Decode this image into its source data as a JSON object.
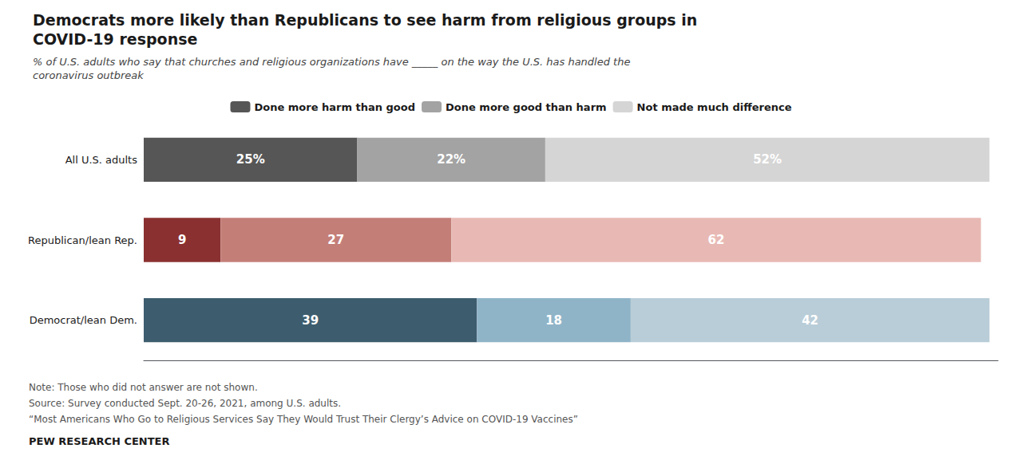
{
  "chart_data": {
    "type": "bar",
    "orientation": "horizontal",
    "stacked": true,
    "title": "Democrats more likely than Republicans to see harm from religious groups in\nCOVID-19 response",
    "subtitle": "% of U.S. adults who say that churches and religious organizations have _____ on the way the U.S. has handled the\ncoronavirus outbreak",
    "categories": [
      "All U.S. adults",
      "Republican/lean Rep.",
      "Democrat/lean Dem."
    ],
    "series": [
      {
        "name": "Done more harm than good",
        "values": [
          25,
          9,
          39
        ],
        "value_labels": [
          "25%",
          "9",
          "39"
        ],
        "colors": [
          "#565656",
          "#8b3030",
          "#3d5d6e"
        ]
      },
      {
        "name": "Done more good than harm",
        "values": [
          22,
          27,
          18
        ],
        "value_labels": [
          "22%",
          "27",
          "18"
        ],
        "colors": [
          "#a3a3a3",
          "#c47e78",
          "#8fb4c8"
        ]
      },
      {
        "name": "Not made much difference",
        "values": [
          52,
          62,
          42
        ],
        "value_labels": [
          "52%",
          "62",
          "42"
        ],
        "colors": [
          "#d5d5d5",
          "#e8b9b4",
          "#b9cdd8"
        ]
      }
    ],
    "xlim": [
      0,
      100
    ],
    "tick_labels": "y",
    "grid": false,
    "legend": "top",
    "data_labels": true,
    "annotations": [
      "Note: Those who did not answer are not shown.",
      "Source: Survey conducted Sept. 20-26, 2021, among U.S. adults.",
      "“Most Americans Who Go to Religious Services Say They Would Trust Their Clergy’s Advice on COVID-19 Vaccines”",
      "PEW RESEARCH CENTER"
    ]
  }
}
